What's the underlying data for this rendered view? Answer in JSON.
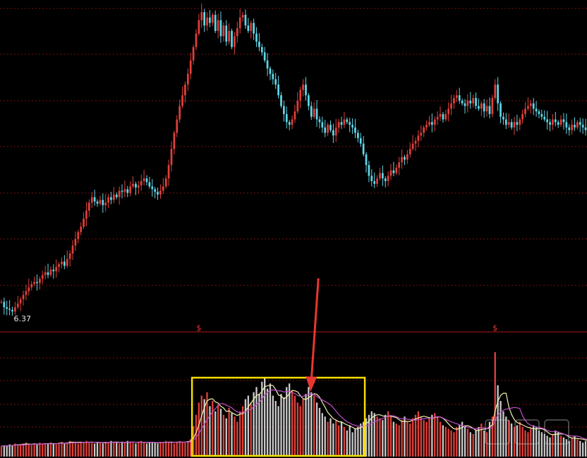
{
  "chart_data": [
    {
      "type": "candlestick",
      "panel": "price",
      "low_annotation": "6.37",
      "grid": true,
      "colors": {
        "up": "#e0403a",
        "down": "#5fd7e8",
        "grid": "#7a1010"
      },
      "series": [
        {
          "values": [
            6.55,
            6.45,
            6.42,
            6.4,
            6.37,
            6.45,
            6.52,
            6.6,
            6.68,
            6.75,
            6.82,
            6.88,
            6.92,
            6.9,
            6.98,
            7.05,
            7.1,
            7.05,
            7.15,
            7.12,
            7.2,
            7.25,
            7.3,
            7.22,
            7.35,
            7.45,
            7.6,
            7.72,
            7.85,
            7.95,
            8.1,
            8.25,
            8.4,
            8.5,
            8.42,
            8.38,
            8.45,
            8.35,
            8.4,
            8.5,
            8.45,
            8.55,
            8.5,
            8.62,
            8.6,
            8.65,
            8.58,
            8.7,
            8.75,
            8.68,
            8.72,
            8.8,
            8.85,
            8.78,
            8.7,
            8.65,
            8.6,
            8.55,
            8.62,
            8.7,
            8.85,
            9.1,
            9.4,
            9.7,
            9.95,
            10.2,
            10.4,
            10.6,
            10.8,
            11.05,
            11.3,
            11.55,
            11.8,
            11.95,
            11.7,
            11.85,
            11.75,
            11.9,
            11.6,
            11.8,
            11.5,
            11.7,
            11.4,
            11.6,
            11.3,
            11.5,
            11.65,
            11.85,
            11.9,
            11.7,
            11.6,
            11.75,
            11.55,
            11.4,
            11.3,
            11.2,
            11.05,
            10.9,
            10.8,
            10.7,
            10.6,
            10.4,
            10.2,
            10.05,
            9.9,
            9.85,
            9.95,
            10.1,
            10.3,
            10.5,
            10.6,
            10.4,
            10.2,
            10.0,
            10.15,
            9.95,
            9.9,
            9.8,
            9.7,
            9.85,
            9.75,
            9.65,
            9.8,
            9.9,
            9.85,
            9.95,
            9.9,
            9.85,
            9.8,
            9.7,
            9.6,
            9.5,
            9.3,
            9.1,
            8.9,
            8.8,
            8.75,
            8.85,
            8.95,
            8.85,
            8.8,
            8.9,
            9.0,
            8.95,
            9.05,
            9.15,
            9.25,
            9.2,
            9.3,
            9.4,
            9.5,
            9.55,
            9.65,
            9.7,
            9.8,
            9.85,
            9.9,
            9.85,
            9.95,
            10.0,
            10.05,
            9.95,
            10.05,
            10.15,
            10.25,
            10.35,
            10.4,
            10.3,
            10.25,
            10.2,
            10.3,
            10.25,
            10.35,
            10.2,
            10.15,
            10.25,
            10.1,
            10.2,
            10.05,
            10.35,
            10.6,
            10.25,
            10.0,
            9.95,
            9.85,
            9.9,
            9.8,
            9.9,
            9.85,
            9.95,
            10.05,
            10.15,
            10.2,
            10.25,
            10.15,
            10.1,
            10.05,
            10.0,
            9.95,
            9.9,
            9.85,
            9.95,
            9.9,
            9.85,
            9.95,
            9.9,
            9.8,
            9.75,
            9.85,
            9.8,
            9.9,
            9.85,
            9.8,
            9.75
          ]
        }
      ]
    },
    {
      "type": "volume",
      "panel": "volume",
      "signal_marker": "$",
      "signal_positions": [
        72,
        180
      ],
      "highlight": {
        "start": 70,
        "end": 133,
        "color": "#f5e000"
      },
      "annotation_arrow": {
        "at": 113,
        "color": "#e8372f"
      },
      "colors": {
        "up": "#e0403a",
        "down": "#c9c9c9",
        "ma_short": "#f2f2b0",
        "ma_long": "#c14fc9"
      },
      "series": [
        {
          "name": "",
          "values": [
            12,
            13,
            12,
            14,
            13,
            15,
            14,
            13,
            15,
            16,
            14,
            13,
            15,
            14,
            16,
            15,
            14,
            15,
            16,
            15,
            14,
            16,
            17,
            15,
            16,
            18,
            17,
            16,
            15,
            17,
            16,
            18,
            17,
            16,
            15,
            17,
            16,
            15,
            17,
            16,
            18,
            17,
            16,
            15,
            17,
            16,
            18,
            17,
            16,
            15,
            17,
            18,
            16,
            15,
            16,
            17,
            16,
            15,
            17,
            16,
            18,
            17,
            16,
            15,
            17,
            18,
            17,
            16,
            18,
            20,
            35,
            48,
            62,
            70,
            66,
            74,
            58,
            64,
            52,
            60,
            55,
            48,
            44,
            56,
            50,
            46,
            40,
            52,
            58,
            66,
            70,
            62,
            74,
            80,
            72,
            86,
            90,
            78,
            84,
            70,
            64,
            58,
            72,
            68,
            80,
            84,
            76,
            70,
            62,
            58,
            66,
            72,
            80,
            74,
            70,
            62,
            56,
            50,
            46,
            40,
            44,
            38,
            42,
            36,
            40,
            34,
            30,
            36,
            28,
            32,
            34,
            38,
            40,
            44,
            48,
            52,
            50,
            46,
            44,
            42,
            48,
            52,
            46,
            40,
            38,
            36,
            42,
            46,
            40,
            38,
            44,
            48,
            52,
            46,
            42,
            40,
            44,
            48,
            50,
            46,
            40,
            36,
            34,
            32,
            30,
            28,
            34,
            36,
            40,
            36,
            32,
            28,
            26,
            30,
            34,
            38,
            30,
            28,
            40,
            46,
            120,
            82,
            64,
            52,
            46,
            42,
            38,
            34,
            36,
            40,
            34,
            30,
            28,
            32,
            36,
            34,
            30,
            28,
            26,
            24,
            22,
            26,
            30,
            28,
            24,
            22,
            20,
            18,
            22,
            24,
            20,
            18,
            16,
            18,
            20,
            22,
            18,
            16,
            14,
            12
          ]
        }
      ]
    }
  ]
}
